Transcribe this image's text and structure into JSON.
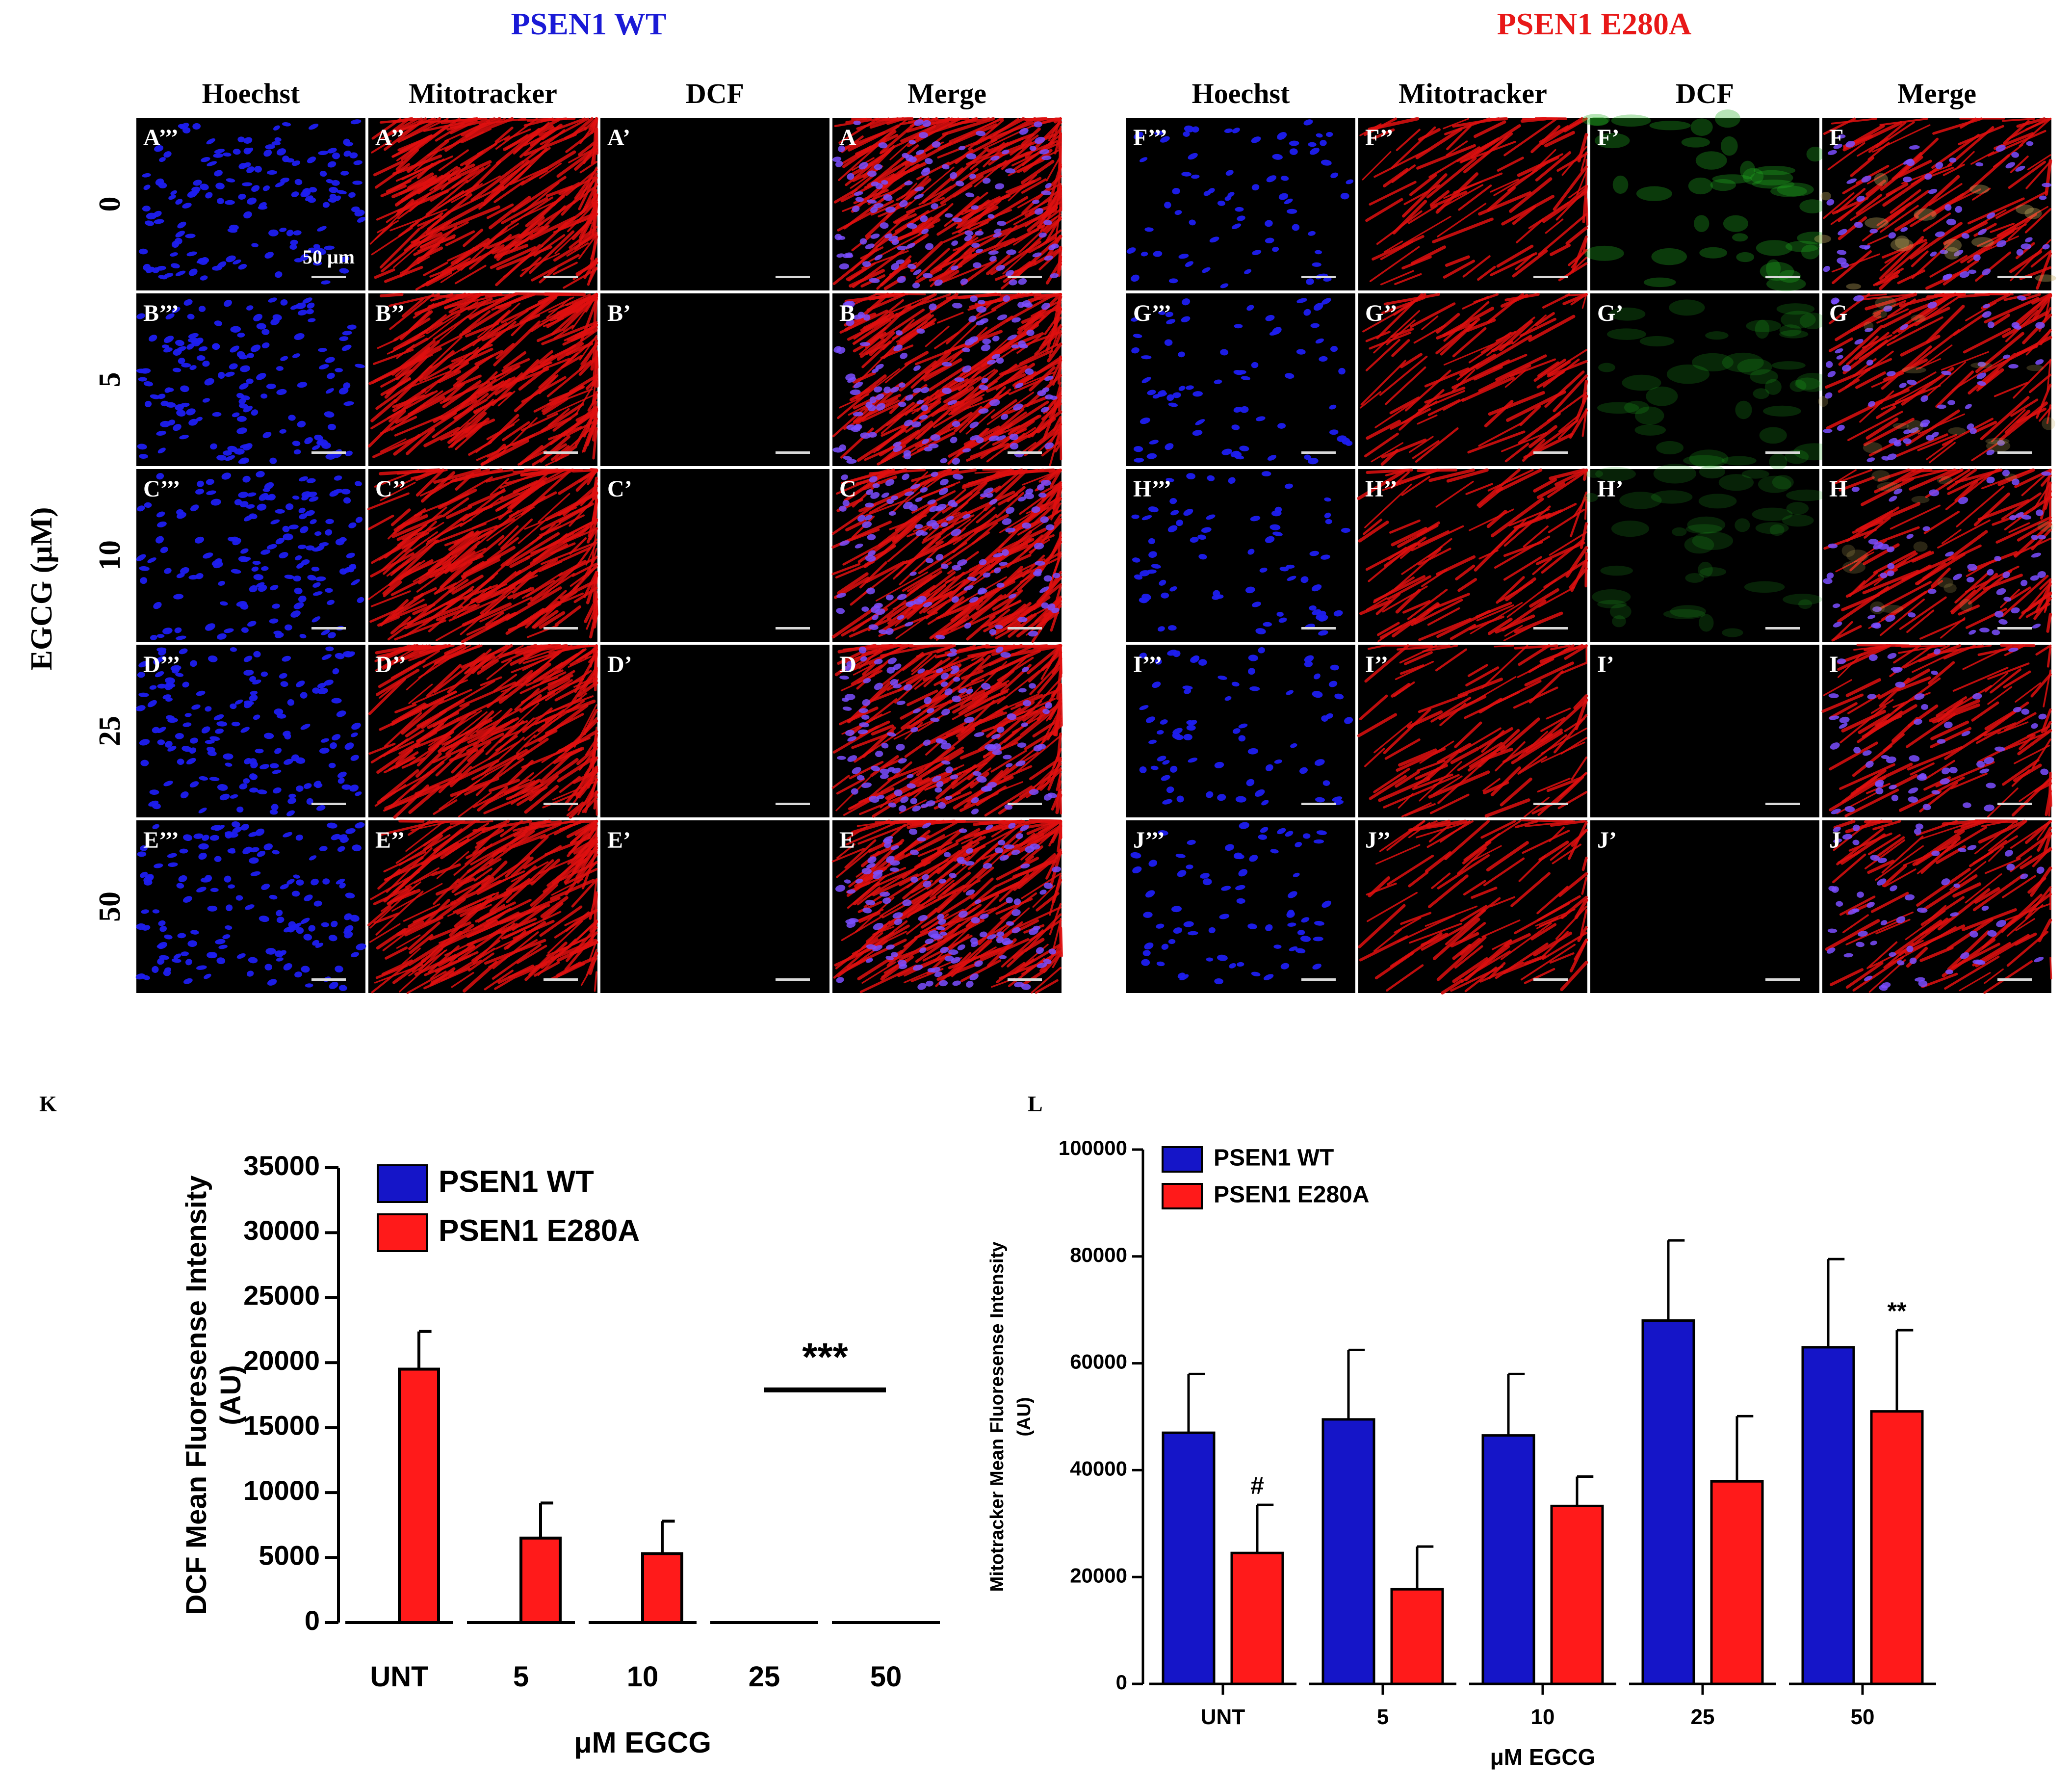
{
  "figure": {
    "group_titles": {
      "wt": "PSEN1 WT",
      "mutant": "PSEN1 E280A"
    },
    "group_colors": {
      "wt": "#1a1ad6",
      "mutant": "#e81818"
    },
    "column_headers": [
      "Hoechst",
      "Mitotracker",
      "DCF",
      "Merge"
    ],
    "row_axis_label": "EGCG (μM)",
    "row_labels": [
      "0",
      "5",
      "10",
      "25",
      "50"
    ],
    "scale_bar_label": "50 μm",
    "wt_panels": [
      [
        "A’’’",
        "A’’",
        "A’",
        "A"
      ],
      [
        "B’’’",
        "B’’",
        "B’",
        "B"
      ],
      [
        "C’’’",
        "C’’",
        "C’",
        "C"
      ],
      [
        "D’’’",
        "D’’",
        "D’",
        "D"
      ],
      [
        "E’’’",
        "E’’",
        "E’",
        "E"
      ]
    ],
    "mutant_panels": [
      [
        "F’’’",
        "F’’",
        "F’",
        "F"
      ],
      [
        "G’’’",
        "G’’",
        "G’",
        "G"
      ],
      [
        "H’’’",
        "H’’",
        "H’",
        "H"
      ],
      [
        "I’’’",
        "I’’",
        "I’",
        "I"
      ],
      [
        "J’’’",
        "J’’",
        "J’",
        "J"
      ]
    ],
    "dcf_signal": {
      "wt": [
        0,
        0,
        0,
        0,
        0
      ],
      "mutant": [
        0.6,
        0.4,
        0.35,
        0,
        0
      ]
    },
    "panel_colors": {
      "hoechst": "#1d1df0",
      "mitotracker": "#e01010",
      "dcf": "#22b022",
      "merge_nuclei": "#7a4dff"
    }
  },
  "chart_data": [
    {
      "panel_letter": "K",
      "type": "bar",
      "title": "",
      "categories": [
        "UNT",
        "5",
        "10",
        "25",
        "50"
      ],
      "series": [
        {
          "name": "PSEN1 WT",
          "color": "#1515c8",
          "values": [
            0,
            0,
            0,
            0,
            0
          ],
          "errors": [
            0,
            0,
            0,
            0,
            0
          ]
        },
        {
          "name": "PSEN1 E280A",
          "color": "#ff1a1a",
          "values": [
            19500,
            6500,
            5300,
            0,
            0
          ],
          "errors": [
            2900,
            2700,
            2500,
            0,
            0
          ]
        }
      ],
      "xlabel": "μM EGCG",
      "ylabel_lines": [
        "DCF Mean Fluoresense Intensity",
        "(AU)"
      ],
      "ylim": [
        0,
        35000
      ],
      "yticks": [
        0,
        5000,
        10000,
        15000,
        20000,
        25000,
        30000,
        35000
      ],
      "annotations": [
        {
          "text": "***",
          "span": [
            "25",
            "50"
          ],
          "y": 17900
        }
      ],
      "legend_position": "top-left"
    },
    {
      "panel_letter": "L",
      "type": "bar",
      "title": "",
      "categories": [
        "UNT",
        "5",
        "10",
        "25",
        "50"
      ],
      "series": [
        {
          "name": "PSEN1 WT",
          "color": "#1515c8",
          "values": [
            47000,
            49500,
            46500,
            68000,
            63000
          ],
          "errors": [
            11000,
            13000,
            11500,
            15000,
            16500
          ]
        },
        {
          "name": "PSEN1 E280A",
          "color": "#ff1a1a",
          "values": [
            24500,
            17700,
            33300,
            37900,
            51000
          ],
          "errors": [
            9000,
            8000,
            5500,
            12200,
            15200
          ]
        }
      ],
      "xlabel": "μM EGCG",
      "ylabel_lines": [
        "Mitotracker Mean Fluoresense Intensity",
        "(AU)"
      ],
      "ylim": [
        0,
        100000
      ],
      "yticks": [
        0,
        20000,
        40000,
        60000,
        80000,
        100000
      ],
      "annotations": [
        {
          "text": "#",
          "category": "UNT",
          "series": 1
        },
        {
          "text": "**",
          "category": "50",
          "series": 1
        }
      ],
      "legend_position": "top-left"
    }
  ]
}
